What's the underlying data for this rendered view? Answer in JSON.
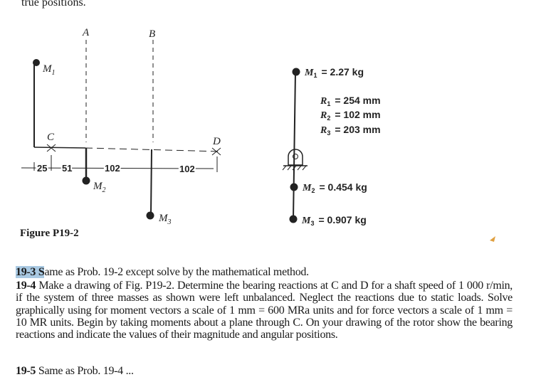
{
  "top_text": "true positions.",
  "figure": {
    "caption": "Figure P19-2",
    "labels": {
      "A": "A",
      "B": "B",
      "C": "C",
      "D": "D",
      "M1": "M",
      "M1_sub": "1",
      "M2": "M",
      "M2_sub": "2",
      "M3": "M",
      "M3_sub": "3"
    },
    "dimensions": [
      "25",
      "51",
      "102",
      "102"
    ],
    "end_view": {
      "m1": {
        "sym": "M",
        "sub": "1",
        "val": "= 2.27 kg"
      },
      "r1": {
        "sym": "R",
        "sub": "1",
        "val": "= 254 mm"
      },
      "r2": {
        "sym": "R",
        "sub": "2",
        "val": "= 102 mm"
      },
      "r3": {
        "sym": "R",
        "sub": "3",
        "val": "= 203 mm"
      },
      "m2": {
        "sym": "M",
        "sub": "2",
        "val": "= 0.454 kg"
      },
      "m3": {
        "sym": "M",
        "sub": "3",
        "val": "= 0.907 kg"
      }
    }
  },
  "problems": [
    {
      "num": "19-3",
      "hl": "19-3 S",
      "text": "ame as Prob. 19-2 except solve by the mathematical method."
    },
    {
      "num": "19-4",
      "text": "Make a drawing of Fig. P19-2. Determine the bearing reactions at C and D for a shaft speed of 1 000 r/min, if the system of three masses as shown were left unbalanced. Neglect the reactions due to static loads. Solve graphically using for moment vectors a scale of 1 mm = 600 MRa units and for force vectors a scale of 1 mm = 10 MR units. Begin by taking moments about a plane through C. On your drawing of the rotor show the bearing reactions and indicate the values of their magnitude and angular positions."
    },
    {
      "num": "19-5",
      "text": "Same as Prob. 19-4 ..."
    }
  ]
}
